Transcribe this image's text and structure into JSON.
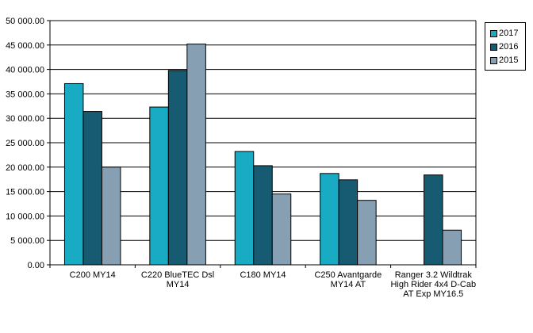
{
  "chart_data": {
    "type": "bar",
    "categories": [
      [
        "C200 MY14"
      ],
      [
        "C220 BlueTEC Dsl",
        "MY14"
      ],
      [
        "C180 MY14"
      ],
      [
        "C250 Avantgarde",
        "MY14 AT"
      ],
      [
        "Ranger 3.2 Wildtrak",
        "High Rider 4x4 D-Cab",
        "AT Exp MY16.5"
      ]
    ],
    "series": [
      {
        "name": "2017",
        "color": "#1aabc4",
        "values": [
          37100,
          32300,
          23200,
          18700,
          null
        ]
      },
      {
        "name": "2016",
        "color": "#175b72",
        "values": [
          31400,
          39800,
          20300,
          17400,
          18400
        ]
      },
      {
        "name": "2015",
        "color": "#879fb2",
        "values": [
          20000,
          45200,
          14500,
          13200,
          7100
        ]
      }
    ],
    "ylim": [
      0,
      50000
    ],
    "yticks": [
      "0.00",
      "5 000.00",
      "10 000.00",
      "15 000.00",
      "20 000.00",
      "25 000.00",
      "30 000.00",
      "35 000.00",
      "40 000.00",
      "45 000.00",
      "50 000.00"
    ],
    "grid": true,
    "legend_position": "top-right"
  }
}
